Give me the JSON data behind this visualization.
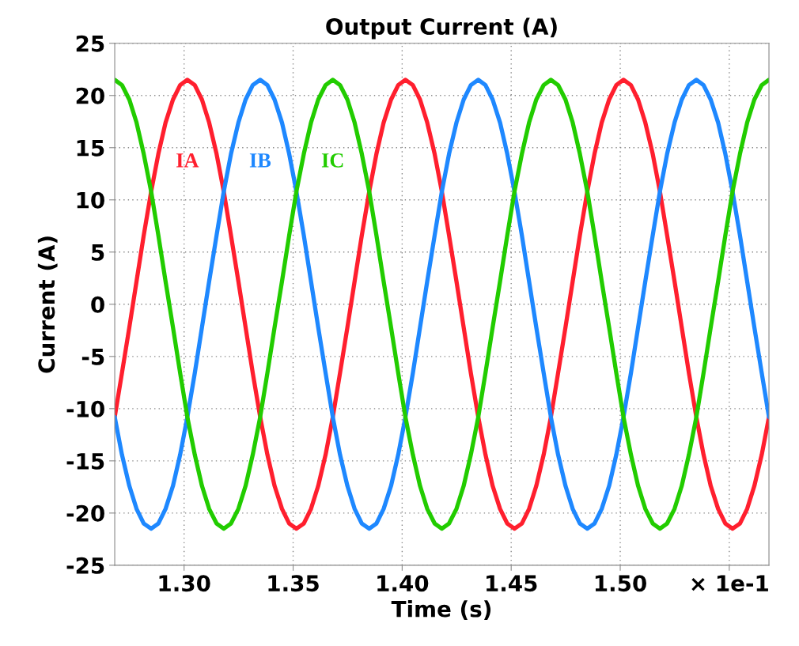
{
  "chart_data": {
    "type": "line",
    "title": "Output Current (A)",
    "xlabel": "Time (s)",
    "ylabel": "Current (A)",
    "x": [
      1.2682,
      1.2715,
      1.2749,
      1.2782,
      1.2815,
      1.2849,
      1.2882,
      1.2915,
      1.2949,
      1.2982,
      1.3015,
      1.3049,
      1.3082,
      1.3115,
      1.3149,
      1.3182,
      1.3215,
      1.3249,
      1.3282,
      1.3315,
      1.3349,
      1.3382,
      1.3415,
      1.3449,
      1.3482,
      1.3515,
      1.3549,
      1.3582,
      1.3615,
      1.3649,
      1.3682,
      1.3715,
      1.3749,
      1.3782,
      1.3815,
      1.3849,
      1.3882,
      1.3915,
      1.3949,
      1.3982,
      1.4015,
      1.4049,
      1.4082,
      1.4115,
      1.4149,
      1.4182,
      1.4215,
      1.4249,
      1.4282,
      1.4315,
      1.4349,
      1.4382,
      1.4415,
      1.4449,
      1.4482,
      1.4515,
      1.4549,
      1.4582,
      1.4615,
      1.4649,
      1.4682,
      1.4715,
      1.4749,
      1.4782,
      1.4815,
      1.4849,
      1.4882,
      1.4915,
      1.4949,
      1.4982,
      1.5015,
      1.5049,
      1.5082,
      1.5115,
      1.5149,
      1.5182,
      1.5215,
      1.5249,
      1.5282,
      1.5315,
      1.5349,
      1.5382,
      1.5415,
      1.5449,
      1.5482,
      1.5515,
      1.5549,
      1.5582,
      1.5615,
      1.5649,
      1.5682
    ],
    "series": [
      {
        "name": "IA",
        "color": "#ff1f2e",
        "values": [
          -10.8,
          -6.6,
          -2.2,
          2.2,
          6.6,
          10.8,
          14.4,
          17.4,
          19.6,
          21.0,
          21.5,
          21.0,
          19.6,
          17.4,
          14.4,
          10.8,
          6.6,
          2.2,
          -2.2,
          -6.6,
          -10.8,
          -14.4,
          -17.4,
          -19.6,
          -21.0,
          -21.5,
          -21.0,
          -19.6,
          -17.4,
          -14.4,
          -10.8,
          -6.6,
          -2.2,
          2.2,
          6.6,
          10.8,
          14.4,
          17.4,
          19.6,
          21.0,
          21.5,
          21.0,
          19.6,
          17.4,
          14.4,
          10.8,
          6.6,
          2.2,
          -2.2,
          -6.6,
          -10.8,
          -14.4,
          -17.4,
          -19.6,
          -21.0,
          -21.5,
          -21.0,
          -19.6,
          -17.4,
          -14.4,
          -10.8,
          -6.6,
          -2.2,
          2.2,
          6.6,
          10.8,
          14.4,
          17.4,
          19.6,
          21.0,
          21.5,
          21.0,
          19.6,
          17.4,
          14.4,
          10.8,
          6.6,
          2.2,
          -2.2,
          -6.6,
          -10.8,
          -14.4,
          -17.4,
          -19.6,
          -21.0,
          -21.5,
          -21.0,
          -19.6,
          -17.4,
          -14.4,
          -10.8
        ]
      },
      {
        "name": "IB",
        "color": "#1e88ff",
        "values": [
          -10.8,
          -14.4,
          -17.4,
          -19.6,
          -21.0,
          -21.5,
          -21.0,
          -19.6,
          -17.4,
          -14.4,
          -10.8,
          -6.6,
          -2.2,
          2.2,
          6.6,
          10.8,
          14.4,
          17.4,
          19.6,
          21.0,
          21.5,
          21.0,
          19.6,
          17.4,
          14.4,
          10.8,
          6.6,
          2.2,
          -2.2,
          -6.6,
          -10.8,
          -14.4,
          -17.4,
          -19.6,
          -21.0,
          -21.5,
          -21.0,
          -19.6,
          -17.4,
          -14.4,
          -10.8,
          -6.6,
          -2.2,
          2.2,
          6.6,
          10.8,
          14.4,
          17.4,
          19.6,
          21.0,
          21.5,
          21.0,
          19.6,
          17.4,
          14.4,
          10.8,
          6.6,
          2.2,
          -2.2,
          -6.6,
          -10.8,
          -14.4,
          -17.4,
          -19.6,
          -21.0,
          -21.5,
          -21.0,
          -19.6,
          -17.4,
          -14.4,
          -10.8,
          -6.6,
          -2.2,
          2.2,
          6.6,
          10.8,
          14.4,
          17.4,
          19.6,
          21.0,
          21.5,
          21.0,
          19.6,
          17.4,
          14.4,
          10.8,
          6.6,
          2.2,
          -2.2,
          -6.6,
          -10.8
        ]
      },
      {
        "name": "IC",
        "color": "#22cc00",
        "values": [
          21.5,
          21.0,
          19.6,
          17.4,
          14.4,
          10.8,
          6.6,
          2.2,
          -2.2,
          -6.6,
          -10.8,
          -14.4,
          -17.4,
          -19.6,
          -21.0,
          -21.5,
          -21.0,
          -19.6,
          -17.4,
          -14.4,
          -10.8,
          -6.6,
          -2.2,
          2.2,
          6.6,
          10.8,
          14.4,
          17.4,
          19.6,
          21.0,
          21.5,
          21.0,
          19.6,
          17.4,
          14.4,
          10.8,
          6.6,
          2.2,
          -2.2,
          -6.6,
          -10.8,
          -14.4,
          -17.4,
          -19.6,
          -21.0,
          -21.5,
          -21.0,
          -19.6,
          -17.4,
          -14.4,
          -10.8,
          -6.6,
          -2.2,
          2.2,
          6.6,
          10.8,
          14.4,
          17.4,
          19.6,
          21.0,
          21.5,
          21.0,
          19.6,
          17.4,
          14.4,
          10.8,
          6.6,
          2.2,
          -2.2,
          -6.6,
          -10.8,
          -14.4,
          -17.4,
          -19.6,
          -21.0,
          -21.5,
          -21.0,
          -19.6,
          -17.4,
          -14.4,
          -10.8,
          -6.6,
          -2.2,
          2.2,
          6.6,
          10.8,
          14.4,
          17.4,
          19.6,
          21.0,
          21.5
        ]
      }
    ],
    "xlim": [
      1.2682,
      1.5682
    ],
    "ylim": [
      -25,
      25
    ],
    "xticks": [
      {
        "value": 1.3,
        "label": "1.30"
      },
      {
        "value": 1.35,
        "label": "1.35"
      },
      {
        "value": 1.4,
        "label": "1.40"
      },
      {
        "value": 1.45,
        "label": "1.45"
      },
      {
        "value": 1.5,
        "label": "1.50"
      },
      {
        "value": 1.55,
        "label": "× 1e-1"
      }
    ],
    "yticks": [
      -25,
      -20,
      -15,
      -10,
      -5,
      0,
      5,
      10,
      15,
      20,
      25
    ],
    "grid": true,
    "line_style": "solid",
    "marker": "none",
    "legend": false
  }
}
